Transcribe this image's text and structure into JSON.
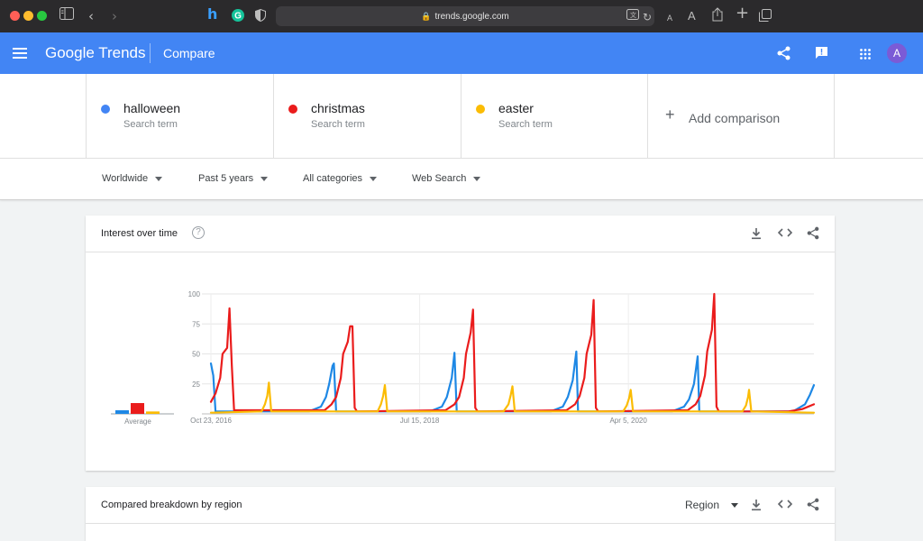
{
  "browser": {
    "url": "trends.google.com",
    "text_size_small": "A",
    "text_size_large": "A"
  },
  "header": {
    "logo": "Google Trends",
    "page_title": "Compare",
    "avatar_letter": "A"
  },
  "terms": [
    {
      "name": "halloween",
      "subtitle": "Search term",
      "color": "#4285f4"
    },
    {
      "name": "christmas",
      "subtitle": "Search term",
      "color": "#ea1c1c"
    },
    {
      "name": "easter",
      "subtitle": "Search term",
      "color": "#fbbc04"
    }
  ],
  "add_comparison": "Add comparison",
  "filters": {
    "location": "Worldwide",
    "time_range": "Past 5 years",
    "category": "All categories",
    "search_type": "Web Search"
  },
  "interest_card": {
    "title": "Interest over time",
    "average_label": "Average"
  },
  "region_card": {
    "title": "Compared breakdown by region",
    "dropdown": "Region"
  },
  "chart_data": {
    "type": "line",
    "title": "Interest over time",
    "ylim": [
      0,
      100
    ],
    "yticks": [
      "25",
      "50",
      "75",
      "100"
    ],
    "x_tick_labels": [
      "Oct 23, 2016",
      "Jul 15, 2018",
      "Apr 5, 2020"
    ],
    "grid": true,
    "x_range": [
      "2016-10-23",
      "2021-10-17"
    ],
    "average": {
      "label": "Average",
      "values": [
        3,
        9,
        2
      ]
    },
    "series": [
      {
        "name": "halloween",
        "color": "#1e88e5",
        "points": [
          [
            "2016-10-23",
            42
          ],
          [
            "2016-10-30",
            32
          ],
          [
            "2016-11-06",
            2
          ],
          [
            "2017-08-15",
            2
          ],
          [
            "2017-09-20",
            6
          ],
          [
            "2017-10-05",
            14
          ],
          [
            "2017-10-15",
            25
          ],
          [
            "2017-10-25",
            40
          ],
          [
            "2017-10-29",
            42
          ],
          [
            "2017-11-05",
            2
          ],
          [
            "2018-08-15",
            2
          ],
          [
            "2018-09-20",
            6
          ],
          [
            "2018-10-05",
            14
          ],
          [
            "2018-10-20",
            30
          ],
          [
            "2018-10-28",
            51
          ],
          [
            "2018-11-04",
            2
          ],
          [
            "2019-08-15",
            2
          ],
          [
            "2019-09-20",
            6
          ],
          [
            "2019-10-05",
            14
          ],
          [
            "2019-10-20",
            28
          ],
          [
            "2019-10-31",
            52
          ],
          [
            "2019-11-05",
            2
          ],
          [
            "2020-08-15",
            2
          ],
          [
            "2020-09-20",
            6
          ],
          [
            "2020-10-05",
            12
          ],
          [
            "2020-10-20",
            25
          ],
          [
            "2020-10-31",
            48
          ],
          [
            "2020-11-05",
            2
          ],
          [
            "2021-08-15",
            2
          ],
          [
            "2021-09-20",
            8
          ],
          [
            "2021-10-05",
            16
          ],
          [
            "2021-10-17",
            24
          ]
        ]
      },
      {
        "name": "christmas",
        "color": "#ea1c1c",
        "points": [
          [
            "2016-10-23",
            10
          ],
          [
            "2016-11-06",
            17
          ],
          [
            "2016-11-20",
            30
          ],
          [
            "2016-11-27",
            50
          ],
          [
            "2016-12-11",
            55
          ],
          [
            "2016-12-18",
            88
          ],
          [
            "2016-12-25",
            40
          ],
          [
            "2017-01-01",
            3
          ],
          [
            "2017-10-01",
            3
          ],
          [
            "2017-10-22",
            8
          ],
          [
            "2017-11-05",
            14
          ],
          [
            "2017-11-19",
            30
          ],
          [
            "2017-11-26",
            50
          ],
          [
            "2017-12-10",
            60
          ],
          [
            "2017-12-17",
            73
          ],
          [
            "2017-12-24",
            73
          ],
          [
            "2017-12-31",
            5
          ],
          [
            "2018-01-07",
            2
          ],
          [
            "2018-10-01",
            3
          ],
          [
            "2018-10-28",
            8
          ],
          [
            "2018-11-11",
            14
          ],
          [
            "2018-11-25",
            30
          ],
          [
            "2018-12-02",
            50
          ],
          [
            "2018-12-16",
            68
          ],
          [
            "2018-12-23",
            87
          ],
          [
            "2018-12-30",
            5
          ],
          [
            "2019-01-06",
            2
          ],
          [
            "2019-10-01",
            3
          ],
          [
            "2019-10-27",
            8
          ],
          [
            "2019-11-10",
            15
          ],
          [
            "2019-11-24",
            30
          ],
          [
            "2019-12-01",
            50
          ],
          [
            "2019-12-15",
            66
          ],
          [
            "2019-12-22",
            95
          ],
          [
            "2019-12-29",
            5
          ],
          [
            "2020-01-05",
            2
          ],
          [
            "2020-10-01",
            3
          ],
          [
            "2020-10-25",
            8
          ],
          [
            "2020-11-08",
            15
          ],
          [
            "2020-11-22",
            32
          ],
          [
            "2020-11-29",
            52
          ],
          [
            "2020-12-13",
            70
          ],
          [
            "2020-12-20",
            100
          ],
          [
            "2020-12-27",
            6
          ],
          [
            "2021-01-03",
            2
          ],
          [
            "2021-08-01",
            2
          ],
          [
            "2021-09-12",
            4
          ],
          [
            "2021-10-17",
            8
          ]
        ]
      },
      {
        "name": "easter",
        "color": "#fbbc04",
        "points": [
          [
            "2016-10-23",
            1
          ],
          [
            "2017-03-25",
            2
          ],
          [
            "2017-04-04",
            8
          ],
          [
            "2017-04-11",
            15
          ],
          [
            "2017-04-16",
            26
          ],
          [
            "2017-04-23",
            2
          ],
          [
            "2018-03-10",
            2
          ],
          [
            "2018-03-20",
            8
          ],
          [
            "2018-03-27",
            15
          ],
          [
            "2018-04-01",
            24
          ],
          [
            "2018-04-08",
            2
          ],
          [
            "2019-03-25",
            2
          ],
          [
            "2019-04-09",
            8
          ],
          [
            "2019-04-16",
            16
          ],
          [
            "2019-04-21",
            23
          ],
          [
            "2019-04-28",
            2
          ],
          [
            "2020-03-20",
            2
          ],
          [
            "2020-03-31",
            7
          ],
          [
            "2020-04-07",
            13
          ],
          [
            "2020-04-12",
            20
          ],
          [
            "2020-04-19",
            2
          ],
          [
            "2021-03-15",
            2
          ],
          [
            "2021-03-26",
            7
          ],
          [
            "2021-04-01",
            14
          ],
          [
            "2021-04-04",
            20
          ],
          [
            "2021-04-11",
            2
          ],
          [
            "2021-10-17",
            1
          ]
        ]
      }
    ]
  }
}
